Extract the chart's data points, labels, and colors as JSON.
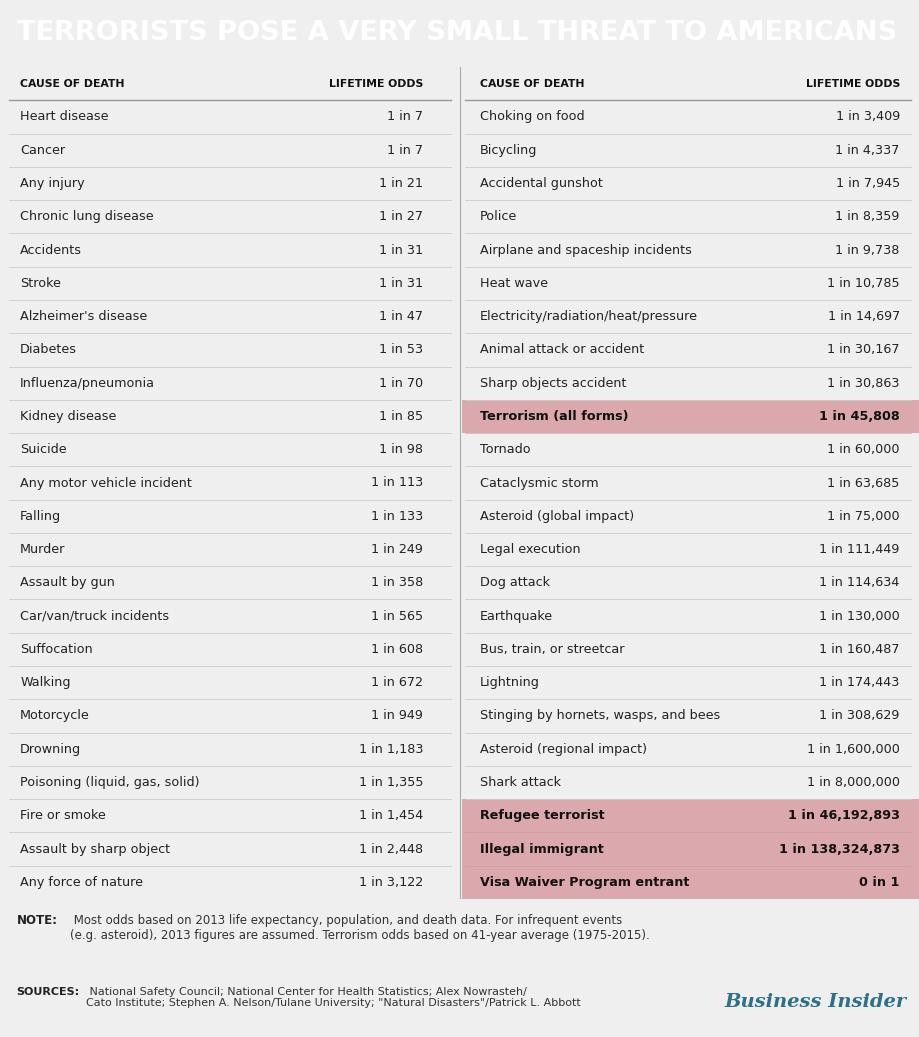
{
  "title": "TERRORISTS POSE A VERY SMALL THREAT TO AMERICANS",
  "title_bg": "#2d7188",
  "title_color": "#ffffff",
  "bg_color": "#efefef",
  "highlight_color": "#dba8ad",
  "divider_color": "#cccccc",
  "text_color": "#222222",
  "left_col_header": [
    "CAUSE OF DEATH",
    "LIFETIME ODDS"
  ],
  "right_col_header": [
    "CAUSE OF DEATH",
    "LIFETIME ODDS"
  ],
  "left_data": [
    [
      "Heart disease",
      "1 in 7"
    ],
    [
      "Cancer",
      "1 in 7"
    ],
    [
      "Any injury",
      "1 in 21"
    ],
    [
      "Chronic lung disease",
      "1 in 27"
    ],
    [
      "Accidents",
      "1 in 31"
    ],
    [
      "Stroke",
      "1 in 31"
    ],
    [
      "Alzheimer's disease",
      "1 in 47"
    ],
    [
      "Diabetes",
      "1 in 53"
    ],
    [
      "Influenza/pneumonia",
      "1 in 70"
    ],
    [
      "Kidney disease",
      "1 in 85"
    ],
    [
      "Suicide",
      "1 in 98"
    ],
    [
      "Any motor vehicle incident",
      "1 in 113"
    ],
    [
      "Falling",
      "1 in 133"
    ],
    [
      "Murder",
      "1 in 249"
    ],
    [
      "Assault by gun",
      "1 in 358"
    ],
    [
      "Car/van/truck incidents",
      "1 in 565"
    ],
    [
      "Suffocation",
      "1 in 608"
    ],
    [
      "Walking",
      "1 in 672"
    ],
    [
      "Motorcycle",
      "1 in 949"
    ],
    [
      "Drowning",
      "1 in 1,183"
    ],
    [
      "Poisoning (liquid, gas, solid)",
      "1 in 1,355"
    ],
    [
      "Fire or smoke",
      "1 in 1,454"
    ],
    [
      "Assault by sharp object",
      "1 in 2,448"
    ],
    [
      "Any force of nature",
      "1 in 3,122"
    ]
  ],
  "right_data": [
    [
      "Choking on food",
      "1 in 3,409",
      false
    ],
    [
      "Bicycling",
      "1 in 4,337",
      false
    ],
    [
      "Accidental gunshot",
      "1 in 7,945",
      false
    ],
    [
      "Police",
      "1 in 8,359",
      false
    ],
    [
      "Airplane and spaceship incidents",
      "1 in 9,738",
      false
    ],
    [
      "Heat wave",
      "1 in 10,785",
      false
    ],
    [
      "Electricity/radiation/heat/pressure",
      "1 in 14,697",
      false
    ],
    [
      "Animal attack or accident",
      "1 in 30,167",
      false
    ],
    [
      "Sharp objects accident",
      "1 in 30,863",
      false
    ],
    [
      "Terrorism (all forms)",
      "1 in 45,808",
      true
    ],
    [
      "Tornado",
      "1 in 60,000",
      false
    ],
    [
      "Cataclysmic storm",
      "1 in 63,685",
      false
    ],
    [
      "Asteroid (global impact)",
      "1 in 75,000",
      false
    ],
    [
      "Legal execution",
      "1 in 111,449",
      false
    ],
    [
      "Dog attack",
      "1 in 114,634",
      false
    ],
    [
      "Earthquake",
      "1 in 130,000",
      false
    ],
    [
      "Bus, train, or streetcar",
      "1 in 160,487",
      false
    ],
    [
      "Lightning",
      "1 in 174,443",
      false
    ],
    [
      "Stinging by hornets, wasps, and bees",
      "1 in 308,629",
      false
    ],
    [
      "Asteroid (regional impact)",
      "1 in 1,600,000",
      false
    ],
    [
      "Shark attack",
      "1 in 8,000,000",
      false
    ],
    [
      "Refugee terrorist",
      "1 in 46,192,893",
      true
    ],
    [
      "Illegal immigrant",
      "1 in 138,324,873",
      true
    ],
    [
      "Visa Waiver Program entrant",
      "0 in 1",
      true
    ]
  ],
  "note_bold": "NOTE:",
  "note_text": " Most odds based on 2013 life expectancy, population, and death data. For infrequent events\n(e.g. asteroid), 2013 figures are assumed. Terrorism odds based on 41-year average (1975-2015).",
  "sources_bold": "SOURCES:",
  "sources_text": " National Safety Council; National Center for Health Statistics; Alex Nowrasteh/\nCato Institute; Stephen A. Nelson/Tulane University; \"Natural Disasters\"/Patrick L. Abbott",
  "logo": "Business Insider",
  "sources_bg": "#e0e0e0"
}
